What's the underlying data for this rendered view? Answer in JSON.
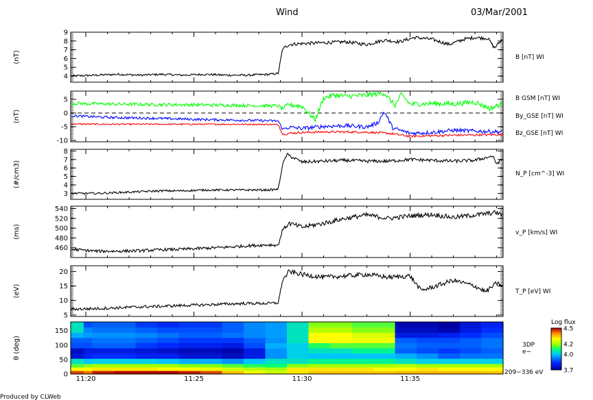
{
  "header": {
    "mission": "Wind",
    "date": "03/Mar/2001"
  },
  "footer": {
    "credit": "Produced by CLWeb"
  },
  "xaxis": {
    "tick_labels": [
      "11:20",
      "11:25",
      "11:30",
      "11:35"
    ],
    "tick_minutes": [
      20,
      25,
      30,
      35
    ],
    "range_minutes": [
      19.3,
      39.3
    ]
  },
  "chart_data": [
    {
      "type": "line",
      "panel": "B",
      "ylabel": "(nT)",
      "ylim": [
        3.3,
        9
      ],
      "yticks": [
        "9",
        "8",
        "7",
        "6",
        "5",
        "4"
      ],
      "ytick_values": [
        9,
        8,
        7,
        6,
        5,
        4
      ],
      "series": [
        {
          "name": "B [nT] WI",
          "color": "#000000",
          "x": [
            19.3,
            20.5,
            21.5,
            22.5,
            23.5,
            24.5,
            25.5,
            26.5,
            27.5,
            28.5,
            28.9,
            29.1,
            29.4,
            30,
            31,
            32,
            33,
            33.8,
            34.5,
            35.2,
            36,
            36.8,
            37.5,
            38,
            38.6,
            38.9,
            39.3
          ],
          "values": [
            4.0,
            4.1,
            4.2,
            4.1,
            4.2,
            4.1,
            4.2,
            4.1,
            4.1,
            4.2,
            4.3,
            7.1,
            7.6,
            7.7,
            7.8,
            7.9,
            7.6,
            8.1,
            7.9,
            8.4,
            8.2,
            7.6,
            8.2,
            8.4,
            8.3,
            7.2,
            8.3
          ]
        }
      ]
    },
    {
      "type": "line",
      "panel": "B components",
      "ylabel": "(nT)",
      "ylim": [
        -10.5,
        8
      ],
      "yticks": [
        "5",
        "0",
        "-5",
        "-10"
      ],
      "ytick_values": [
        5,
        0,
        -5,
        -10
      ],
      "zero_line": "dashed",
      "series": [
        {
          "name": "B GSM [nT] WI",
          "color": "#ff0000",
          "x": [
            19.3,
            21,
            23,
            25,
            27,
            28.9,
            29.1,
            29.4,
            30,
            31,
            32,
            33,
            34,
            35,
            36,
            37,
            38,
            39.3
          ],
          "values": [
            -4.0,
            -4.1,
            -4.1,
            -4.1,
            -4.1,
            -4.2,
            -7.8,
            -7.4,
            -7.1,
            -6.9,
            -6.9,
            -7.0,
            -7.4,
            -8.5,
            -8.3,
            -8.1,
            -8.0,
            -7.9
          ]
        },
        {
          "name": "By_GSE [nT] WI",
          "color": "#00ff00",
          "x": [
            19.3,
            21,
            23,
            25,
            27,
            28.9,
            29.1,
            29.4,
            30,
            30.6,
            31,
            31.5,
            32,
            33,
            33.8,
            34.3,
            34.6,
            35,
            36,
            37,
            38,
            38.7,
            39.3
          ],
          "values": [
            3.5,
            3.3,
            3.1,
            3.0,
            2.8,
            2.6,
            1.5,
            3.0,
            2.5,
            -2.5,
            5.5,
            6.6,
            6.1,
            6.5,
            7.3,
            2.7,
            6.8,
            3.2,
            3.5,
            3.3,
            4.0,
            1.6,
            3.5
          ]
        },
        {
          "name": "Bz_GSE [nT] WI",
          "color": "#0000ff",
          "x": [
            19.3,
            21,
            23,
            25,
            27,
            28.9,
            29.1,
            29.4,
            30,
            31,
            32,
            33,
            33.5,
            33.8,
            34.2,
            35,
            36,
            37,
            38,
            39.3
          ],
          "values": [
            -1.0,
            -1.6,
            -1.9,
            -2.3,
            -2.6,
            -2.9,
            -5.9,
            -5.2,
            -5.6,
            -4.9,
            -4.6,
            -5.1,
            -3.6,
            0.5,
            -5.5,
            -7.4,
            -7.1,
            -6.3,
            -6.6,
            -6.9
          ]
        }
      ]
    },
    {
      "type": "line",
      "panel": "density",
      "ylabel": "(#/cm3)",
      "ylim": [
        2.3,
        8.2
      ],
      "yticks": [
        "8",
        "7",
        "6",
        "5",
        "4",
        "3"
      ],
      "ytick_values": [
        8,
        7,
        6,
        5,
        4,
        3
      ],
      "series": [
        {
          "name": "N_P [cm^-3] WI",
          "color": "#000000",
          "x": [
            19.3,
            20.5,
            21.5,
            22.5,
            23.5,
            24.5,
            25.5,
            26.5,
            27.5,
            28.5,
            28.9,
            29.1,
            29.3,
            29.6,
            30,
            31,
            32,
            33,
            34,
            35,
            36,
            37,
            38,
            38.8,
            39,
            39.3
          ],
          "values": [
            3.0,
            3.0,
            3.1,
            3.2,
            3.3,
            3.3,
            3.4,
            3.4,
            3.4,
            3.4,
            3.5,
            6.4,
            7.6,
            7.2,
            6.7,
            6.8,
            6.9,
            6.8,
            6.8,
            7.0,
            6.9,
            6.8,
            6.9,
            7.4,
            6.5,
            7.1
          ]
        }
      ]
    },
    {
      "type": "line",
      "panel": "velocity",
      "ylabel": "(ms)",
      "ylim": [
        440,
        545
      ],
      "yticks": [
        "540",
        "520",
        "500",
        "480",
        "460"
      ],
      "ytick_values": [
        540,
        520,
        500,
        480,
        460
      ],
      "series": [
        {
          "name": "v_P [km/s] WI",
          "color": "#000000",
          "x": [
            19.3,
            20.5,
            21.5,
            22.5,
            23.5,
            24.5,
            25.5,
            26.5,
            27.5,
            28.5,
            28.9,
            29.1,
            29.4,
            30,
            31,
            32,
            33,
            34,
            35,
            36,
            37,
            38,
            39,
            39.3
          ],
          "values": [
            457,
            453,
            453,
            454,
            456,
            457,
            459,
            461,
            464,
            466,
            465,
            497,
            510,
            502,
            510,
            520,
            527,
            520,
            525,
            528,
            522,
            527,
            532,
            526
          ]
        }
      ]
    },
    {
      "type": "line",
      "panel": "temperature",
      "ylabel": "(eV)",
      "ylim": [
        4.5,
        22
      ],
      "yticks": [
        "20",
        "15",
        "10",
        "5"
      ],
      "ytick_values": [
        20,
        15,
        10,
        5
      ],
      "series": [
        {
          "name": "T_P [eV] WI",
          "color": "#000000",
          "x": [
            19.3,
            20.5,
            21.5,
            22.5,
            23.5,
            24.5,
            25.5,
            26.5,
            27.5,
            28.5,
            28.9,
            29.1,
            29.4,
            30,
            31,
            32,
            33,
            34,
            35,
            35.5,
            36,
            37,
            38,
            38.5,
            39,
            39.3
          ],
          "values": [
            7.0,
            7.2,
            7.5,
            7.8,
            8.0,
            8.3,
            8.5,
            8.8,
            9.0,
            9.0,
            9.2,
            17.0,
            20.0,
            19.0,
            18.0,
            18.5,
            19.0,
            18.0,
            18.5,
            13.5,
            14.5,
            17.0,
            15.0,
            13.0,
            16.0,
            15.0
          ]
        }
      ]
    },
    {
      "type": "heatmap",
      "panel": "3DP pitch angle",
      "ylabel": "θ (deg)",
      "ylim": [
        0,
        180
      ],
      "yticks": [
        "150",
        "100",
        "50",
        "0"
      ],
      "ytick_values": [
        150,
        100,
        50,
        0
      ],
      "right_label": [
        "3DP",
        "e−",
        "209−336 eV"
      ],
      "colorbar": {
        "title": "Log flux",
        "ticks": [
          "4.5",
          "4.2",
          "4.0",
          "3.7"
        ],
        "tick_values": [
          4.5,
          4.2,
          4.0,
          3.7
        ],
        "range": [
          3.7,
          4.5
        ]
      },
      "x_edges": [
        19.3,
        19.9,
        20.3,
        21.3,
        22.3,
        23.3,
        24.3,
        25.3,
        26.3,
        27.3,
        28.3,
        29.3,
        30.3,
        31.3,
        32.3,
        33.3,
        34.3,
        35.3,
        36.3,
        37.3,
        38.3,
        39.3
      ],
      "y_edges": [
        0,
        12,
        24,
        36,
        54,
        72,
        90,
        108,
        126,
        144,
        162,
        180
      ],
      "values": [
        [
          4.45,
          4.42,
          4.48,
          4.5,
          4.5,
          4.5,
          4.48,
          4.45,
          4.35,
          4.3,
          4.25,
          4.32,
          4.35,
          4.35,
          4.35,
          4.35,
          4.36,
          4.36,
          4.36,
          4.36,
          4.35
        ],
        [
          4.3,
          4.3,
          4.32,
          4.32,
          4.32,
          4.3,
          4.3,
          4.28,
          4.25,
          4.22,
          4.2,
          4.32,
          4.32,
          4.32,
          4.32,
          4.3,
          4.3,
          4.32,
          4.3,
          4.3,
          4.3
        ],
        [
          4.15,
          4.18,
          4.2,
          4.2,
          4.2,
          4.2,
          4.18,
          4.18,
          4.15,
          4.12,
          4.1,
          4.18,
          4.2,
          4.2,
          4.2,
          4.2,
          4.22,
          4.2,
          4.2,
          4.2,
          4.2
        ],
        [
          4.05,
          4.0,
          4.02,
          4.02,
          4.02,
          4.0,
          3.98,
          3.98,
          3.95,
          4.0,
          4.05,
          4.05,
          4.08,
          4.08,
          4.08,
          4.08,
          4.05,
          4.02,
          4.02,
          4.02,
          4.02
        ],
        [
          3.78,
          3.82,
          3.85,
          3.85,
          3.82,
          3.82,
          3.78,
          3.78,
          3.75,
          3.8,
          3.95,
          4.02,
          4.0,
          4.0,
          4.0,
          4.0,
          3.98,
          3.95,
          3.9,
          3.92,
          3.92
        ],
        [
          3.75,
          3.8,
          3.8,
          3.8,
          3.78,
          3.76,
          3.74,
          3.74,
          3.72,
          3.8,
          3.95,
          4.02,
          4.05,
          4.05,
          4.08,
          4.08,
          3.9,
          3.88,
          3.86,
          3.88,
          3.9
        ],
        [
          3.88,
          3.88,
          3.9,
          3.9,
          3.86,
          3.84,
          3.82,
          3.82,
          3.8,
          3.88,
          3.98,
          4.02,
          4.12,
          4.15,
          4.15,
          4.15,
          3.92,
          3.9,
          3.9,
          3.9,
          3.92
        ],
        [
          3.9,
          3.9,
          3.92,
          3.92,
          3.9,
          3.88,
          3.86,
          3.86,
          3.86,
          3.9,
          3.95,
          4.05,
          4.3,
          4.3,
          4.28,
          4.28,
          3.9,
          3.88,
          3.88,
          3.9,
          3.92
        ],
        [
          3.98,
          3.96,
          3.95,
          3.95,
          3.94,
          3.92,
          3.9,
          3.9,
          3.92,
          3.94,
          3.96,
          4.05,
          4.3,
          4.3,
          4.26,
          4.26,
          3.8,
          3.8,
          3.82,
          3.85,
          3.88
        ],
        [
          4.05,
          3.94,
          3.92,
          3.92,
          3.9,
          3.88,
          3.88,
          3.88,
          3.9,
          3.94,
          3.96,
          4.05,
          4.22,
          4.22,
          4.18,
          4.18,
          3.75,
          3.75,
          3.72,
          3.8,
          3.85
        ],
        [
          4.05,
          3.88,
          3.9,
          3.9,
          3.86,
          3.84,
          3.86,
          3.86,
          3.9,
          3.94,
          3.96,
          4.05,
          4.18,
          4.18,
          4.15,
          4.15,
          3.72,
          3.72,
          3.7,
          3.78,
          3.82
        ]
      ]
    }
  ]
}
